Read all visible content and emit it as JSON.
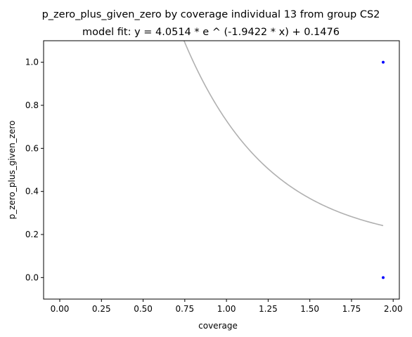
{
  "chart_data": {
    "type": "scatter",
    "title": "p_zero_plus_given_zero by coverage individual 13 from group CS2",
    "subtitle": "model fit: y = 4.0514 * e ^ (-1.9422 * x) + 0.1476",
    "xlabel": "coverage",
    "ylabel": "p_zero_plus_given_zero",
    "xlim": [
      -0.097,
      2.037
    ],
    "ylim": [
      -0.1,
      1.1
    ],
    "xticks": [
      0.0,
      0.25,
      0.5,
      0.75,
      1.0,
      1.25,
      1.5,
      1.75,
      2.0
    ],
    "xtick_labels": [
      "0.00",
      "0.25",
      "0.50",
      "0.75",
      "1.00",
      "1.25",
      "1.50",
      "1.75",
      "2.00"
    ],
    "yticks": [
      0.0,
      0.2,
      0.4,
      0.6,
      0.8,
      1.0
    ],
    "ytick_labels": [
      "0.0",
      "0.2",
      "0.4",
      "0.6",
      "0.8",
      "1.0"
    ],
    "grid": false,
    "series": [
      {
        "kind": "scatter",
        "color": "#0000ff",
        "points": [
          {
            "x": 1.94,
            "y": 1.0
          },
          {
            "x": 1.94,
            "y": 0.0
          }
        ]
      },
      {
        "kind": "line",
        "color": "#b0b0b0",
        "model": {
          "a": 4.0514,
          "b": -1.9422,
          "c": 0.1476
        },
        "x_range": [
          0.0,
          1.94
        ]
      }
    ]
  }
}
